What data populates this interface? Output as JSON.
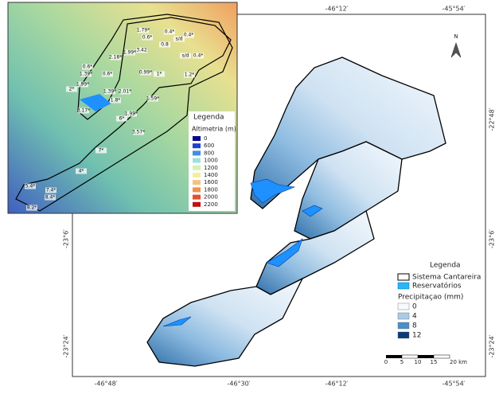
{
  "main_map": {
    "top_labels": [
      "-46°12′",
      "-45°54′"
    ],
    "bottom_labels": [
      "-46°48′",
      "-46°30′",
      "-46°12′",
      "-45°54′"
    ],
    "right_labels": [
      "-22°48′",
      "-23°6′",
      "-23°24′"
    ],
    "left_labels": [
      "-23°6′",
      "-23°24′"
    ],
    "north": "N",
    "legend": {
      "title": "Legenda",
      "items": [
        "Sistema Cantareira",
        "Reservatórios"
      ],
      "subtitle": "Precipitaçao (mm)",
      "classes": [
        "0",
        "4",
        "8",
        "12"
      ]
    },
    "scale": [
      "0",
      "5",
      "10",
      "15",
      "20 km"
    ]
  },
  "inset_map": {
    "legend": {
      "title": "Legenda",
      "subtitle": "Altimetria (m)",
      "classes": [
        "0",
        "600",
        "800",
        "1000",
        "1200",
        "1400",
        "1600",
        "1800",
        "2000",
        "2200"
      ]
    },
    "labels": [
      "1.79*",
      "0.6*",
      "0.4*",
      "0.4*",
      "1.99*",
      "3.42",
      "0.8",
      "s/d",
      "2.18*",
      "s/d",
      "0.4*",
      "0.6*",
      "1.39*",
      "0.6*",
      "0.99*",
      "1*",
      "1.2*",
      "1.99*",
      "2*",
      "1.39*",
      "2.01*",
      "1.59*",
      "1.8*",
      "3.17*",
      "1.99*",
      "6*",
      "3.57*",
      "7*",
      "4*",
      "5.4*",
      "7.4*",
      "8.4*",
      "8.2*"
    ]
  }
}
